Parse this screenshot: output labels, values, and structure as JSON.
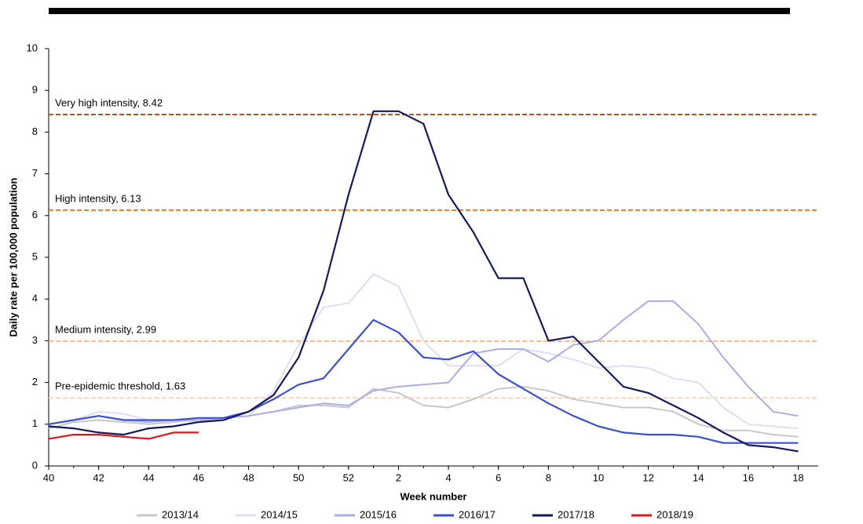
{
  "chart_data": {
    "type": "line",
    "y_label": "Daily rate per 100,000 population",
    "x_label": "Week number",
    "x": [
      40,
      41,
      42,
      43,
      44,
      45,
      46,
      47,
      48,
      49,
      50,
      51,
      52,
      53,
      54,
      55,
      56,
      57,
      58,
      59,
      60,
      61,
      62,
      63,
      64,
      65,
      66,
      67,
      68,
      69,
      70
    ],
    "xlim": [
      40,
      70.8
    ],
    "xticks": [
      40,
      42,
      44,
      46,
      48,
      50,
      52,
      {
        "value": 54,
        "label": "2"
      },
      {
        "value": 56,
        "label": "4"
      },
      {
        "value": 58,
        "label": "6"
      },
      {
        "value": 60,
        "label": "8"
      },
      {
        "value": 62,
        "label": "10"
      },
      {
        "value": 64,
        "label": "12"
      },
      {
        "value": 66,
        "label": "14"
      },
      {
        "value": 68,
        "label": "16"
      },
      {
        "value": 70,
        "label": "18"
      }
    ],
    "ylim": [
      0,
      10
    ],
    "yticks": [
      0,
      1,
      2,
      3,
      4,
      5,
      6,
      7,
      8,
      9,
      10
    ],
    "thresholds": [
      {
        "label": "Very high intensity, 8.42",
        "value": 8.42,
        "color": "#c0501a"
      },
      {
        "label": "High intensity, 6.13",
        "value": 6.13,
        "color": "#f07c1e"
      },
      {
        "label": "Medium intensity, 2.99",
        "value": 2.99,
        "color": "#f5b98a"
      },
      {
        "label": "Pre-epidemic threshold, 1.63",
        "value": 1.63,
        "color": "#fbd5b5"
      }
    ],
    "series": [
      {
        "name": "2013/14",
        "color": "#c8c8c8",
        "values": [
          0.9,
          1.05,
          1.1,
          1.05,
          1.0,
          1.05,
          1.1,
          1.15,
          1.2,
          1.3,
          1.45,
          1.45,
          1.4,
          1.85,
          1.75,
          1.45,
          1.4,
          1.6,
          1.85,
          1.9,
          1.8,
          1.6,
          1.5,
          1.4,
          1.4,
          1.3,
          1.0,
          0.85,
          0.85,
          0.75,
          0.7
        ]
      },
      {
        "name": "2014/15",
        "color": "#dcdff5",
        "values": [
          1.0,
          1.1,
          1.3,
          1.25,
          1.1,
          1.1,
          1.05,
          1.15,
          1.2,
          1.8,
          2.9,
          3.8,
          3.9,
          4.6,
          4.3,
          3.0,
          2.4,
          2.4,
          2.4,
          2.8,
          2.7,
          2.55,
          2.35,
          2.4,
          2.35,
          2.1,
          2.0,
          1.4,
          1.0,
          0.95,
          0.9
        ]
      },
      {
        "name": "2015/16",
        "color": "#a9aee6",
        "values": [
          1.0,
          1.1,
          1.2,
          1.1,
          1.05,
          1.1,
          1.1,
          1.15,
          1.2,
          1.3,
          1.4,
          1.5,
          1.45,
          1.8,
          1.9,
          1.95,
          2.0,
          2.7,
          2.8,
          2.8,
          2.5,
          2.9,
          3.0,
          3.5,
          3.95,
          3.95,
          3.4,
          2.6,
          1.9,
          1.3,
          1.2
        ]
      },
      {
        "name": "2016/17",
        "color": "#3c4fd8",
        "values": [
          1.0,
          1.1,
          1.2,
          1.1,
          1.1,
          1.1,
          1.15,
          1.15,
          1.3,
          1.6,
          1.95,
          2.1,
          2.8,
          3.5,
          3.2,
          2.6,
          2.55,
          2.75,
          2.2,
          1.85,
          1.5,
          1.2,
          0.95,
          0.8,
          0.75,
          0.75,
          0.7,
          0.55,
          0.55,
          0.55,
          0.55
        ]
      },
      {
        "name": "2017/18",
        "color": "#141a5c",
        "values": [
          0.95,
          0.9,
          0.8,
          0.75,
          0.9,
          0.95,
          1.05,
          1.1,
          1.3,
          1.7,
          2.6,
          4.2,
          6.5,
          8.5,
          8.5,
          8.2,
          6.5,
          5.6,
          4.5,
          4.5,
          3.0,
          3.1,
          2.5,
          1.9,
          1.75,
          1.45,
          1.15,
          0.8,
          0.5,
          0.45,
          0.35
        ]
      },
      {
        "name": "2018/19",
        "color": "#e0161b",
        "values": [
          0.65,
          0.75,
          0.75,
          0.7,
          0.65,
          0.8,
          0.8,
          null,
          null,
          null,
          null,
          null,
          null,
          null,
          null,
          null,
          null,
          null,
          null,
          null,
          null,
          null,
          null,
          null,
          null,
          null,
          null,
          null,
          null,
          null,
          null
        ]
      }
    ]
  }
}
